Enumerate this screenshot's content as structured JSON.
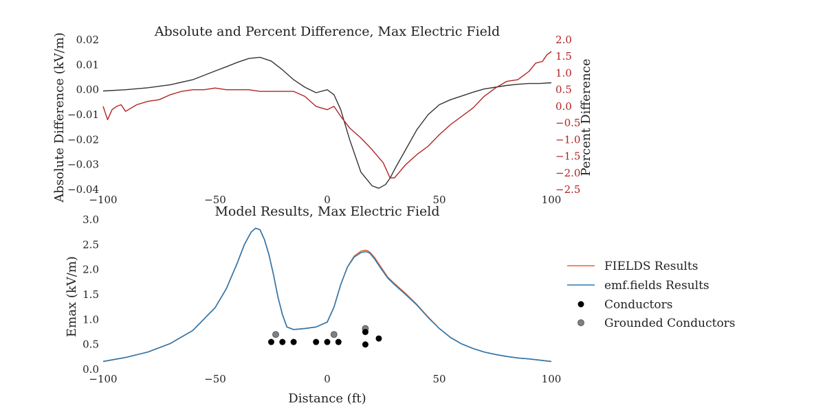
{
  "colors": {
    "abs_diff": "#333333",
    "pct_diff": "#b22222",
    "fields": "#e8642c",
    "emf_fields": "#2b78b0",
    "conductor": "#000000",
    "grounded": "#808080"
  },
  "chart_data": [
    {
      "type": "line",
      "title": "Absolute and Percent Difference, Max Electric Field",
      "ylabel": "Absolute Difference (kV/m)",
      "y2label": "Percent Difference",
      "xlim": [
        -100,
        100
      ],
      "ylim": [
        -0.04,
        0.02
      ],
      "y2lim": [
        -2.5,
        2.0
      ],
      "xticks": [
        -100,
        -50,
        0,
        50,
        100
      ],
      "xtick_labels": [
        "−100",
        "−50",
        "0",
        "50",
        "100"
      ],
      "yticks": [
        0.02,
        0.01,
        0.0,
        -0.01,
        -0.02,
        -0.03,
        -0.04
      ],
      "ytick_labels": [
        "0.02",
        "0.01",
        "0.00",
        "−0.01",
        "−0.02",
        "−0.03",
        "−0.04"
      ],
      "y2ticks": [
        2.0,
        1.5,
        1.0,
        0.5,
        0.0,
        -0.5,
        -1.0,
        -1.5,
        -2.0,
        -2.5
      ],
      "y2tick_labels": [
        "2.0",
        "1.5",
        "1.0",
        "0.5",
        "0.0",
        "−0.5",
        "−1.0",
        "−1.5",
        "−2.0",
        "−2.5"
      ],
      "grid": false,
      "series": [
        {
          "axis": "left",
          "x": [
            -100,
            -90,
            -80,
            -70,
            -60,
            -50,
            -45,
            -40,
            -35,
            -30,
            -25,
            -20,
            -15,
            -10,
            -5,
            0,
            3,
            6,
            10,
            15,
            20,
            23,
            26,
            28,
            30,
            35,
            40,
            45,
            50,
            55,
            60,
            65,
            70,
            75,
            80,
            85,
            90,
            95,
            100
          ],
          "y": [
            -0.0005,
            0.0,
            0.0008,
            0.002,
            0.004,
            0.0075,
            0.0092,
            0.011,
            0.0125,
            0.013,
            0.0115,
            0.008,
            0.004,
            0.001,
            -0.0012,
            0.0,
            -0.002,
            -0.008,
            -0.02,
            -0.033,
            -0.0385,
            -0.0395,
            -0.038,
            -0.0355,
            -0.032,
            -0.024,
            -0.016,
            -0.01,
            -0.006,
            -0.004,
            -0.0025,
            -0.001,
            0.0003,
            0.001,
            0.0017,
            0.0022,
            0.0025,
            0.0025,
            0.0028
          ]
        },
        {
          "axis": "right",
          "x": [
            -100,
            -98,
            -96,
            -94,
            -92,
            -90,
            -85,
            -80,
            -75,
            -70,
            -65,
            -60,
            -55,
            -50,
            -45,
            -40,
            -35,
            -30,
            -25,
            -20,
            -15,
            -10,
            -5,
            0,
            3,
            6,
            10,
            15,
            20,
            25,
            28,
            30,
            35,
            40,
            45,
            50,
            55,
            60,
            65,
            70,
            75,
            80,
            85,
            90,
            93,
            96,
            98,
            100
          ],
          "y": [
            0.0,
            -0.4,
            -0.1,
            0.0,
            0.05,
            -0.15,
            0.05,
            0.15,
            0.2,
            0.35,
            0.45,
            0.5,
            0.5,
            0.55,
            0.5,
            0.5,
            0.5,
            0.45,
            0.45,
            0.45,
            0.45,
            0.3,
            0.0,
            -0.1,
            0.0,
            -0.3,
            -0.65,
            -0.95,
            -1.3,
            -1.7,
            -2.15,
            -2.15,
            -1.75,
            -1.45,
            -1.2,
            -0.85,
            -0.55,
            -0.3,
            -0.05,
            0.3,
            0.55,
            0.75,
            0.8,
            1.05,
            1.3,
            1.35,
            1.55,
            1.65
          ]
        }
      ]
    },
    {
      "type": "line",
      "title": "Model Results, Max Electric Field",
      "xlabel": "Distance (ft)",
      "ylabel": "Emax (kV/m)",
      "xlim": [
        -100,
        100
      ],
      "ylim": [
        0.0,
        3.0
      ],
      "xticks": [
        -100,
        -50,
        0,
        50,
        100
      ],
      "xtick_labels": [
        "−100",
        "−50",
        "0",
        "50",
        "100"
      ],
      "yticks": [
        3.0,
        2.5,
        2.0,
        1.5,
        1.0,
        0.5,
        0.0
      ],
      "ytick_labels": [
        "3.0",
        "2.5",
        "2.0",
        "1.5",
        "1.0",
        "0.5",
        "0.0"
      ],
      "grid": false,
      "legend_position": "right",
      "series": [
        {
          "name": "FIELDS Results",
          "x": [
            -100,
            -90,
            -80,
            -70,
            -60,
            -50,
            -45,
            -40,
            -37,
            -34,
            -32,
            -30,
            -28,
            -26,
            -24,
            -22,
            -20,
            -18,
            -15,
            -10,
            -5,
            0,
            3,
            6,
            9,
            12,
            15,
            17,
            18,
            19,
            21,
            24,
            27,
            30,
            35,
            40,
            45,
            50,
            55,
            60,
            65,
            70,
            75,
            80,
            85,
            90,
            100
          ],
          "y": [
            0.16,
            0.24,
            0.35,
            0.52,
            0.78,
            1.24,
            1.62,
            2.15,
            2.5,
            2.75,
            2.83,
            2.8,
            2.6,
            2.3,
            1.9,
            1.45,
            1.1,
            0.85,
            0.8,
            0.82,
            0.85,
            0.95,
            1.25,
            1.7,
            2.05,
            2.27,
            2.37,
            2.39,
            2.38,
            2.35,
            2.25,
            2.05,
            1.85,
            1.72,
            1.52,
            1.3,
            1.05,
            0.82,
            0.64,
            0.51,
            0.42,
            0.35,
            0.3,
            0.26,
            0.23,
            0.21,
            0.16
          ]
        },
        {
          "name": "emf.fields Results",
          "x": [
            -100,
            -90,
            -80,
            -70,
            -60,
            -50,
            -45,
            -40,
            -37,
            -34,
            -32,
            -30,
            -28,
            -26,
            -24,
            -22,
            -20,
            -18,
            -15,
            -10,
            -5,
            0,
            3,
            6,
            9,
            12,
            15,
            17,
            18,
            19,
            21,
            24,
            27,
            30,
            35,
            40,
            45,
            50,
            55,
            60,
            65,
            70,
            75,
            80,
            85,
            90,
            100
          ],
          "y": [
            0.16,
            0.24,
            0.35,
            0.52,
            0.78,
            1.24,
            1.62,
            2.15,
            2.5,
            2.75,
            2.83,
            2.8,
            2.6,
            2.3,
            1.9,
            1.45,
            1.1,
            0.85,
            0.8,
            0.82,
            0.85,
            0.95,
            1.25,
            1.7,
            2.05,
            2.25,
            2.34,
            2.36,
            2.35,
            2.33,
            2.22,
            2.02,
            1.83,
            1.7,
            1.5,
            1.29,
            1.04,
            0.82,
            0.64,
            0.51,
            0.42,
            0.35,
            0.3,
            0.26,
            0.23,
            0.21,
            0.16
          ]
        },
        {
          "name": "Conductors",
          "style": "points",
          "x": [
            -25,
            -20,
            -15,
            -5,
            0,
            5,
            17,
            17,
            23
          ],
          "y": [
            0.55,
            0.55,
            0.55,
            0.55,
            0.55,
            0.55,
            0.75,
            0.5,
            0.62
          ]
        },
        {
          "name": "Grounded Conductors",
          "style": "points",
          "x": [
            -23,
            3,
            17
          ],
          "y": [
            0.7,
            0.7,
            0.82
          ]
        }
      ]
    }
  ]
}
